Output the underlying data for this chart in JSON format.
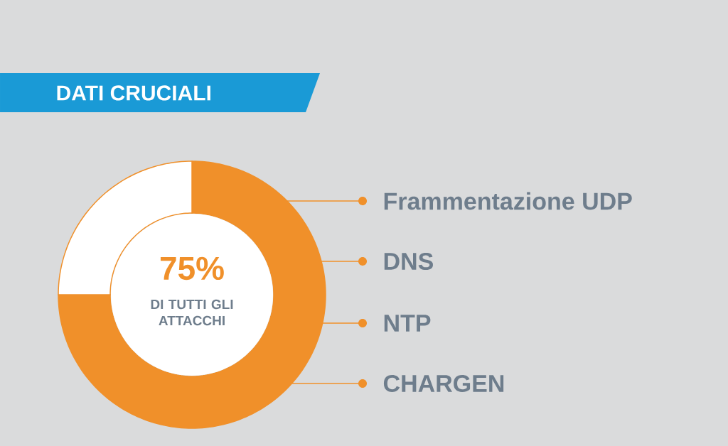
{
  "chart_data": {
    "type": "donut",
    "title": "DATI CRUCIALI",
    "categories": [
      null,
      null
    ],
    "values": [
      75,
      25
    ],
    "colors": [
      "#f0902a",
      "#ffffff"
    ],
    "value_labels": [
      "75%",
      null
    ],
    "annotations": [
      "DI TUTTI GLI ATTACCHI",
      "Frammentazione UDP",
      "DNS",
      "NTP",
      "CHARGEN"
    ]
  }
}
